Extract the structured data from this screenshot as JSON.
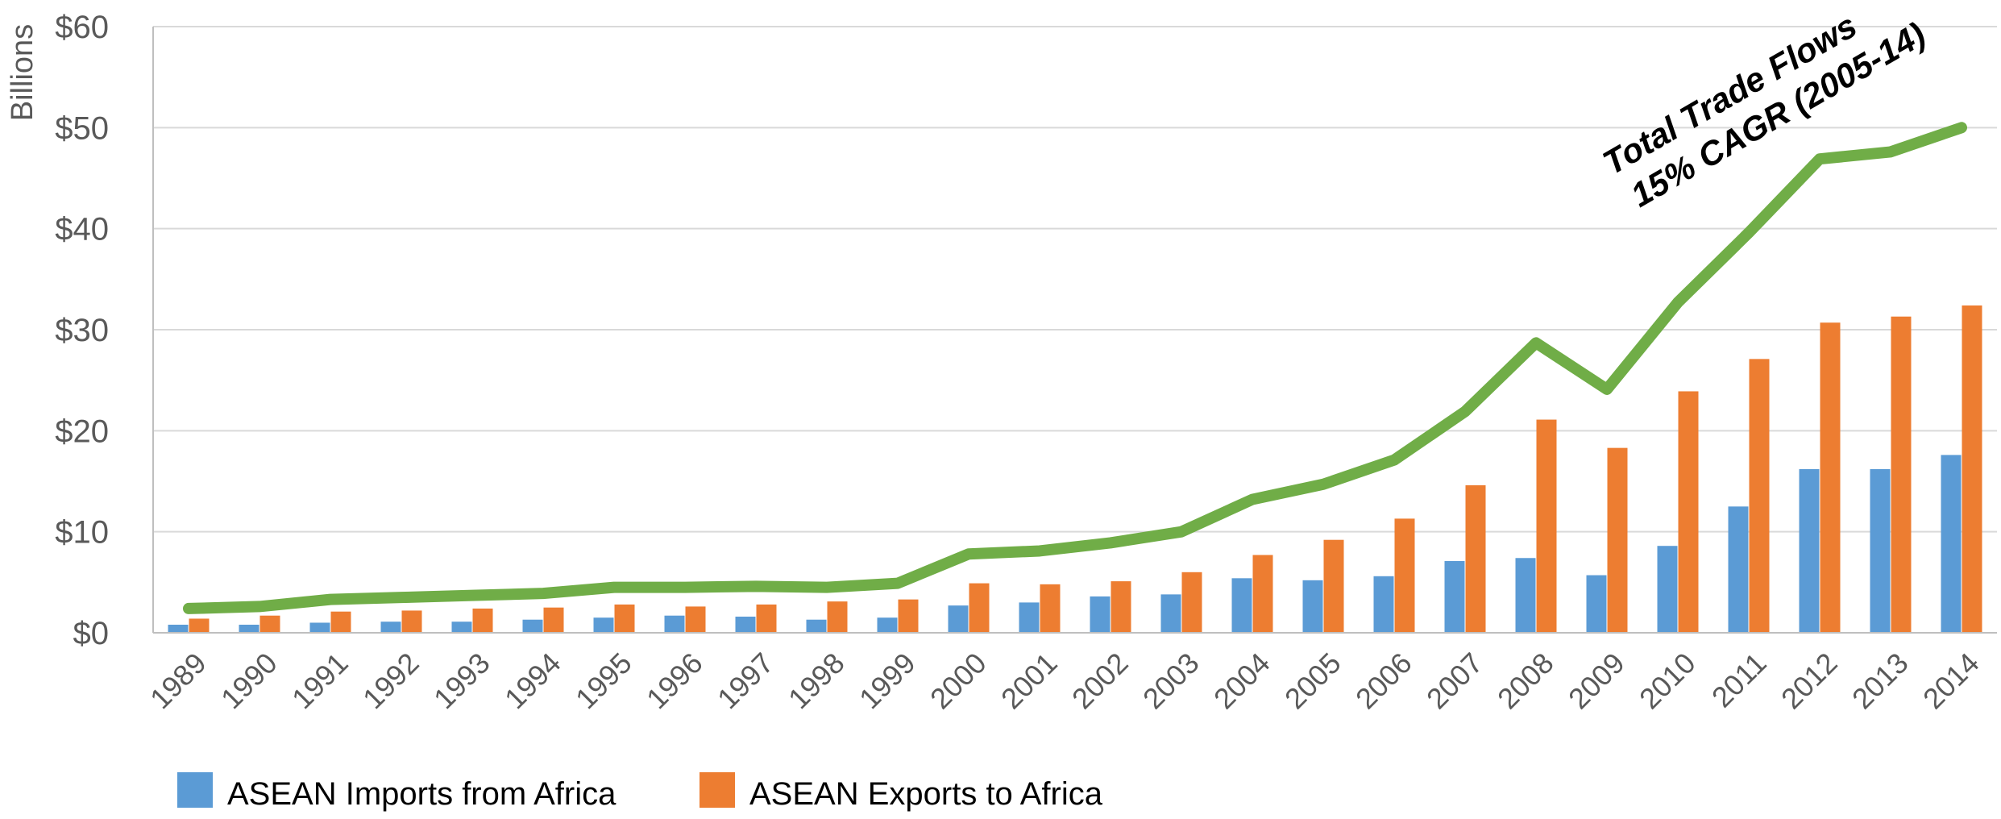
{
  "chart_data": {
    "type": "bar",
    "ylabel": "Billions",
    "ylim": [
      0,
      60
    ],
    "yticks": [
      0,
      10,
      20,
      30,
      40,
      50,
      60
    ],
    "ytick_labels": [
      "$0",
      "$10",
      "$20",
      "$30",
      "$40",
      "$50",
      "$60"
    ],
    "grid": true,
    "legend_position": "bottom-left",
    "categories": [
      "1989",
      "1990",
      "1991",
      "1992",
      "1993",
      "1994",
      "1995",
      "1996",
      "1997",
      "1998",
      "1999",
      "2000",
      "2001",
      "2002",
      "2003",
      "2004",
      "2005",
      "2006",
      "2007",
      "2008",
      "2009",
      "2010",
      "2011",
      "2012",
      "2013",
      "2014"
    ],
    "series": [
      {
        "name": "ASEAN Imports from Africa",
        "type": "bar",
        "color": "#5B9BD5",
        "values": [
          0.8,
          0.8,
          1.0,
          1.1,
          1.1,
          1.3,
          1.5,
          1.7,
          1.6,
          1.3,
          1.5,
          2.7,
          3.0,
          3.6,
          3.8,
          5.4,
          5.2,
          5.6,
          7.1,
          7.4,
          5.7,
          8.6,
          12.5,
          16.2,
          16.2,
          17.6
        ]
      },
      {
        "name": "ASEAN Exports to Africa",
        "type": "bar",
        "color": "#ED7D31",
        "values": [
          1.4,
          1.7,
          2.1,
          2.2,
          2.4,
          2.5,
          2.8,
          2.6,
          2.8,
          3.1,
          3.3,
          4.9,
          4.8,
          5.1,
          6.0,
          7.7,
          9.2,
          11.3,
          14.6,
          21.1,
          18.3,
          23.9,
          27.1,
          30.7,
          31.3,
          32.4
        ]
      },
      {
        "name": "",
        "type": "line",
        "color": "#70AD47",
        "values": [
          2.4,
          2.6,
          3.3,
          3.5,
          3.7,
          3.9,
          4.5,
          4.5,
          4.6,
          4.5,
          4.9,
          7.8,
          8.1,
          8.9,
          10.0,
          13.2,
          14.7,
          17.1,
          21.9,
          28.7,
          24.1,
          32.7,
          39.6,
          46.9,
          47.6,
          50.0
        ]
      }
    ],
    "annotation": {
      "lines": [
        "Total Trade Flows",
        "15% CAGR (2005-14)"
      ]
    }
  }
}
